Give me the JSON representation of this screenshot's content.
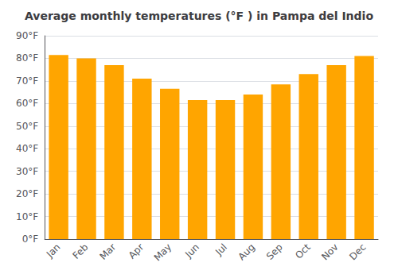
{
  "chart_data": {
    "type": "bar",
    "title": "Average monthly temperatures (°F ) in Pampa del Indio",
    "categories": [
      "Jan",
      "Feb",
      "Mar",
      "Apr",
      "May",
      "Jun",
      "Jul",
      "Aug",
      "Sep",
      "Oct",
      "Nov",
      "Dec"
    ],
    "values": [
      81.5,
      80.0,
      77.0,
      71.0,
      66.5,
      61.5,
      61.5,
      64.0,
      68.5,
      73.0,
      77.0,
      81.0
    ],
    "color": "#FFA500",
    "ylim": [
      0,
      90
    ],
    "yticks": [
      {
        "value": 0,
        "label": "0°F"
      },
      {
        "value": 10,
        "label": "10°F"
      },
      {
        "value": 20,
        "label": "20°F"
      },
      {
        "value": 30,
        "label": "30°F"
      },
      {
        "value": 40,
        "label": "40°F"
      },
      {
        "value": 50,
        "label": "50°F"
      },
      {
        "value": 60,
        "label": "60°F"
      },
      {
        "value": 70,
        "label": "70°F"
      },
      {
        "value": 80,
        "label": "80°F"
      },
      {
        "value": 90,
        "label": "90°F"
      }
    ],
    "grid": true
  }
}
